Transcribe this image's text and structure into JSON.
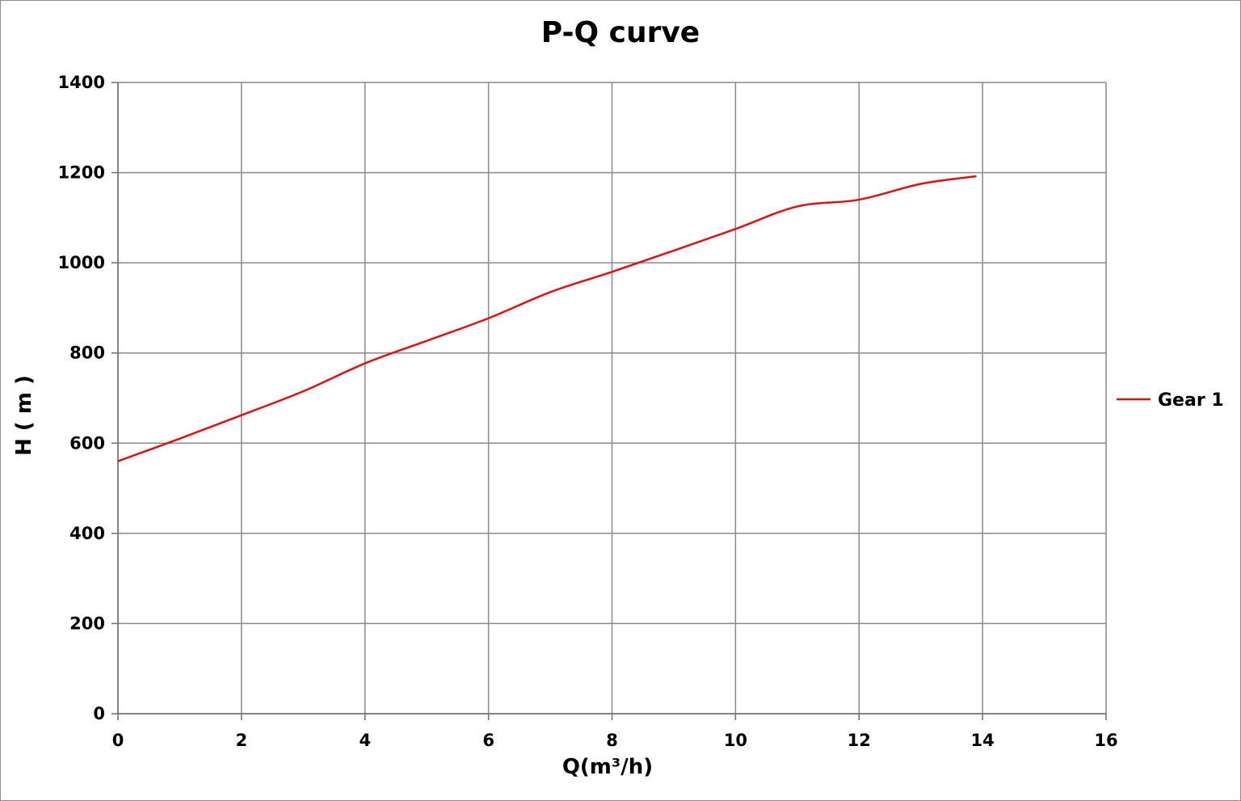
{
  "chart_data": {
    "type": "line",
    "title": "P-Q  curve",
    "xlabel": "Q(m³/h)",
    "ylabel": "H ( m )",
    "xlim": [
      0,
      16
    ],
    "ylim": [
      0,
      1400
    ],
    "x_ticks": [
      "0",
      "2",
      "4",
      "6",
      "8",
      "10",
      "12",
      "14",
      "16"
    ],
    "y_ticks": [
      "0",
      "200",
      "400",
      "600",
      "800",
      "1000",
      "1200",
      "1400"
    ],
    "grid": true,
    "legend_position": "right",
    "series": [
      {
        "name": "Gear 1",
        "color": "#e31010",
        "x": [
          0,
          1,
          2,
          3,
          4,
          5,
          6,
          7,
          8,
          9,
          10,
          11,
          12,
          13,
          13.9
        ],
        "y": [
          560,
          610,
          662,
          715,
          777,
          827,
          877,
          935,
          980,
          1027,
          1075,
          1125,
          1140,
          1175,
          1192
        ]
      }
    ]
  }
}
